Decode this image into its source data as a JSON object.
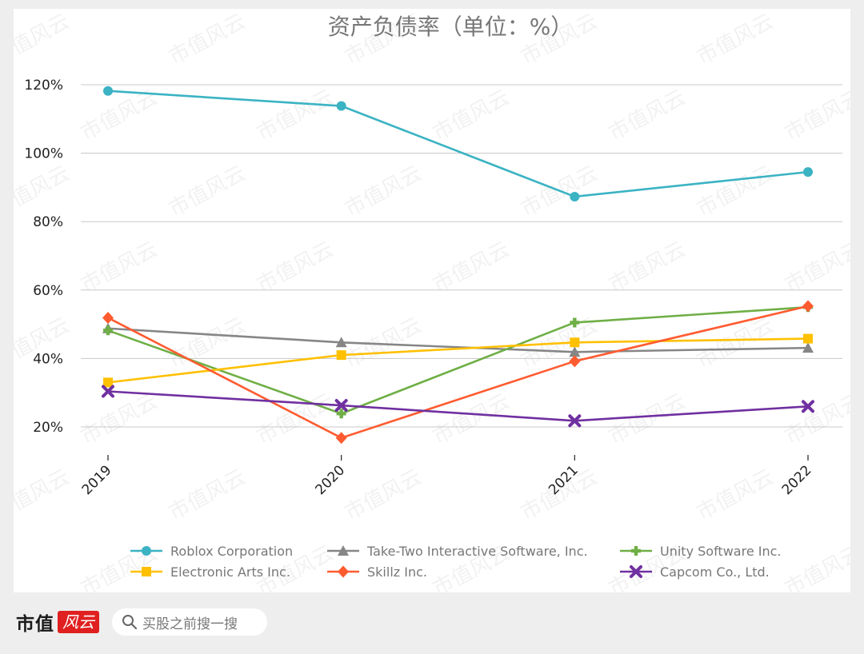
{
  "chart_data": {
    "type": "line",
    "title": "资产负债率（单位：%）",
    "categories": [
      "2019",
      "2020",
      "2021",
      "2022"
    ],
    "y_ticks": [
      "20%",
      "40%",
      "60%",
      "80%",
      "100%",
      "120%"
    ],
    "y_tick_values": [
      20,
      40,
      60,
      80,
      100,
      120
    ],
    "ylim": [
      10,
      130
    ],
    "grid": "horizontal",
    "legend_position": "bottom",
    "series": [
      {
        "name": "Roblox Corporation",
        "values": [
          118.2,
          113.8,
          87.3,
          94.5
        ],
        "color": "#3BB3C3",
        "marker": "circle"
      },
      {
        "name": "Take-Two Interactive Software, Inc.",
        "values": [
          48.8,
          44.7,
          41.9,
          43.1
        ],
        "color": "#868686",
        "marker": "triangle"
      },
      {
        "name": "Unity Software Inc.",
        "values": [
          48.2,
          23.9,
          50.5,
          55.0
        ],
        "color": "#6FAF46",
        "marker": "plus"
      },
      {
        "name": "Electronic Arts Inc.",
        "values": [
          33.0,
          41.0,
          44.7,
          45.8
        ],
        "color": "#FFC000",
        "marker": "square"
      },
      {
        "name": "Skillz Inc.",
        "values": [
          51.9,
          16.8,
          39.2,
          55.3
        ],
        "color": "#FF5B30",
        "marker": "diamond"
      },
      {
        "name": "Capcom Co., Ltd.",
        "values": [
          30.4,
          26.3,
          21.8,
          26.0
        ],
        "color": "#7030A0",
        "marker": "x"
      }
    ]
  },
  "watermark": "市值风云",
  "footer": {
    "brand_text": "市值",
    "brand_seal": "风云",
    "search_placeholder": "买股之前搜一搜",
    "search_icon": "search-icon"
  }
}
